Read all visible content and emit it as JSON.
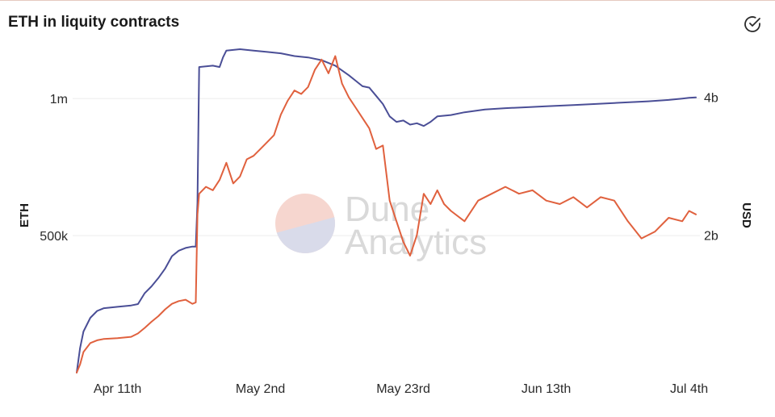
{
  "title": "ETH in liquity contracts",
  "watermark": {
    "line1": "Dune",
    "line2": "Analytics"
  },
  "icons": {
    "check": "check-circle-icon",
    "watermark_logo": "dune-logo-icon"
  },
  "chart_data": {
    "type": "line",
    "title": "ETH in liquity contracts",
    "xlabel": "",
    "y_left_label": "ETH",
    "y_right_label": "USD",
    "x_range": [
      "2021-04-05",
      "2021-07-05"
    ],
    "x_ticks": [
      {
        "date": "2021-04-11",
        "label": "Apr 11th"
      },
      {
        "date": "2021-05-02",
        "label": "May 2nd"
      },
      {
        "date": "2021-05-23",
        "label": "May 23rd"
      },
      {
        "date": "2021-06-13",
        "label": "Jun 13th"
      },
      {
        "date": "2021-07-04",
        "label": "Jul 4th"
      }
    ],
    "y_left_range": [
      0,
      1180000
    ],
    "y_left_ticks": [
      {
        "value": 500000,
        "label": "500k"
      },
      {
        "value": 1000000,
        "label": "1m"
      }
    ],
    "y_right_range": [
      0,
      4700000000
    ],
    "y_right_ticks": [
      {
        "value": 2000000000,
        "label": "2b"
      },
      {
        "value": 4000000000,
        "label": "4b"
      }
    ],
    "grid": "horizontal",
    "series": [
      {
        "axis": "left",
        "color": "#4a4e96",
        "points": [
          [
            "2021-04-05",
            0
          ],
          [
            "2021-04-05T12:00",
            90000
          ],
          [
            "2021-04-06",
            150000
          ],
          [
            "2021-04-07",
            200000
          ],
          [
            "2021-04-08",
            225000
          ],
          [
            "2021-04-09",
            235000
          ],
          [
            "2021-04-11",
            240000
          ],
          [
            "2021-04-13",
            245000
          ],
          [
            "2021-04-14",
            250000
          ],
          [
            "2021-04-15",
            290000
          ],
          [
            "2021-04-16",
            315000
          ],
          [
            "2021-04-17",
            345000
          ],
          [
            "2021-04-18",
            380000
          ],
          [
            "2021-04-19",
            425000
          ],
          [
            "2021-04-20",
            445000
          ],
          [
            "2021-04-21",
            455000
          ],
          [
            "2021-04-22",
            460000
          ],
          [
            "2021-04-22T12:00",
            460000
          ],
          [
            "2021-04-22T18:00",
            620000
          ],
          [
            "2021-04-23",
            1115000
          ],
          [
            "2021-04-25",
            1120000
          ],
          [
            "2021-04-26",
            1115000
          ],
          [
            "2021-04-26T12:00",
            1150000
          ],
          [
            "2021-04-27",
            1175000
          ],
          [
            "2021-04-29",
            1180000
          ],
          [
            "2021-05-01",
            1175000
          ],
          [
            "2021-05-03",
            1170000
          ],
          [
            "2021-05-05",
            1165000
          ],
          [
            "2021-05-07",
            1155000
          ],
          [
            "2021-05-09",
            1150000
          ],
          [
            "2021-05-11",
            1140000
          ],
          [
            "2021-05-13",
            1120000
          ],
          [
            "2021-05-15",
            1085000
          ],
          [
            "2021-05-16",
            1065000
          ],
          [
            "2021-05-17",
            1045000
          ],
          [
            "2021-05-18",
            1040000
          ],
          [
            "2021-05-19",
            1010000
          ],
          [
            "2021-05-20",
            980000
          ],
          [
            "2021-05-21",
            935000
          ],
          [
            "2021-05-22",
            915000
          ],
          [
            "2021-05-23",
            920000
          ],
          [
            "2021-05-24",
            905000
          ],
          [
            "2021-05-25",
            910000
          ],
          [
            "2021-05-26",
            900000
          ],
          [
            "2021-05-27",
            915000
          ],
          [
            "2021-05-28",
            935000
          ],
          [
            "2021-05-30",
            940000
          ],
          [
            "2021-06-01",
            950000
          ],
          [
            "2021-06-04",
            960000
          ],
          [
            "2021-06-07",
            965000
          ],
          [
            "2021-06-10",
            968000
          ],
          [
            "2021-06-13",
            972000
          ],
          [
            "2021-06-17",
            976000
          ],
          [
            "2021-06-20",
            980000
          ],
          [
            "2021-06-24",
            985000
          ],
          [
            "2021-06-28",
            990000
          ],
          [
            "2021-07-01",
            995000
          ],
          [
            "2021-07-03",
            1000000
          ],
          [
            "2021-07-04",
            1003000
          ],
          [
            "2021-07-05",
            1004000
          ]
        ]
      },
      {
        "axis": "right",
        "color": "#e0613e",
        "points": [
          [
            "2021-04-05",
            0
          ],
          [
            "2021-04-05T12:00",
            120000000
          ],
          [
            "2021-04-06",
            300000000
          ],
          [
            "2021-04-07",
            430000000
          ],
          [
            "2021-04-08",
            470000000
          ],
          [
            "2021-04-09",
            490000000
          ],
          [
            "2021-04-11",
            500000000
          ],
          [
            "2021-04-13",
            520000000
          ],
          [
            "2021-04-14",
            570000000
          ],
          [
            "2021-04-15",
            650000000
          ],
          [
            "2021-04-16",
            740000000
          ],
          [
            "2021-04-17",
            820000000
          ],
          [
            "2021-04-18",
            920000000
          ],
          [
            "2021-04-19",
            1000000000
          ],
          [
            "2021-04-20",
            1040000000
          ],
          [
            "2021-04-21",
            1060000000
          ],
          [
            "2021-04-22",
            1000000000
          ],
          [
            "2021-04-22T12:00",
            1020000000
          ],
          [
            "2021-04-22T18:00",
            2300000000
          ],
          [
            "2021-04-23",
            2600000000
          ],
          [
            "2021-04-24",
            2700000000
          ],
          [
            "2021-04-25",
            2650000000
          ],
          [
            "2021-04-26",
            2800000000
          ],
          [
            "2021-04-27",
            3050000000
          ],
          [
            "2021-04-28",
            2750000000
          ],
          [
            "2021-04-29",
            2850000000
          ],
          [
            "2021-04-30",
            3100000000
          ],
          [
            "2021-05-01",
            3150000000
          ],
          [
            "2021-05-02",
            3250000000
          ],
          [
            "2021-05-03",
            3350000000
          ],
          [
            "2021-05-04",
            3450000000
          ],
          [
            "2021-05-05",
            3750000000
          ],
          [
            "2021-05-06",
            3950000000
          ],
          [
            "2021-05-07",
            4100000000
          ],
          [
            "2021-05-08",
            4050000000
          ],
          [
            "2021-05-09",
            4150000000
          ],
          [
            "2021-05-10",
            4400000000
          ],
          [
            "2021-05-11",
            4550000000
          ],
          [
            "2021-05-12",
            4350000000
          ],
          [
            "2021-05-13",
            4600000000
          ],
          [
            "2021-05-14",
            4200000000
          ],
          [
            "2021-05-15",
            4000000000
          ],
          [
            "2021-05-16",
            3850000000
          ],
          [
            "2021-05-17",
            3700000000
          ],
          [
            "2021-05-18",
            3550000000
          ],
          [
            "2021-05-19",
            3250000000
          ],
          [
            "2021-05-20",
            3300000000
          ],
          [
            "2021-05-21",
            2500000000
          ],
          [
            "2021-05-22",
            2200000000
          ],
          [
            "2021-05-23",
            1900000000
          ],
          [
            "2021-05-24",
            1700000000
          ],
          [
            "2021-05-25",
            2000000000
          ],
          [
            "2021-05-26",
            2600000000
          ],
          [
            "2021-05-27",
            2450000000
          ],
          [
            "2021-05-28",
            2650000000
          ],
          [
            "2021-05-29",
            2450000000
          ],
          [
            "2021-05-30",
            2350000000
          ],
          [
            "2021-06-01",
            2200000000
          ],
          [
            "2021-06-03",
            2500000000
          ],
          [
            "2021-06-05",
            2600000000
          ],
          [
            "2021-06-07",
            2700000000
          ],
          [
            "2021-06-09",
            2600000000
          ],
          [
            "2021-06-11",
            2650000000
          ],
          [
            "2021-06-13",
            2500000000
          ],
          [
            "2021-06-15",
            2450000000
          ],
          [
            "2021-06-17",
            2550000000
          ],
          [
            "2021-06-19",
            2400000000
          ],
          [
            "2021-06-21",
            2550000000
          ],
          [
            "2021-06-23",
            2500000000
          ],
          [
            "2021-06-25",
            2200000000
          ],
          [
            "2021-06-27",
            1950000000
          ],
          [
            "2021-06-29",
            2050000000
          ],
          [
            "2021-07-01",
            2250000000
          ],
          [
            "2021-07-03",
            2200000000
          ],
          [
            "2021-07-04",
            2350000000
          ],
          [
            "2021-07-05",
            2300000000
          ]
        ]
      }
    ]
  }
}
